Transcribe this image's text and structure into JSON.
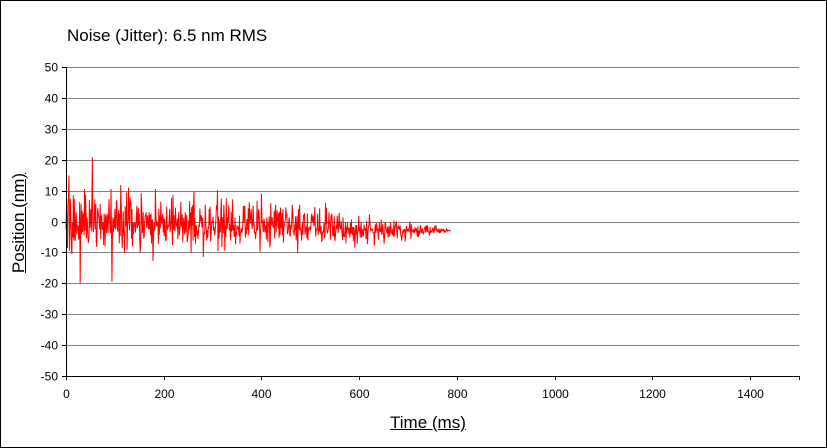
{
  "chart_data": {
    "type": "line",
    "title": "Noise (Jitter): 6.5 nm RMS",
    "xlabel": "Time (ms)",
    "ylabel": "Position (nm)",
    "xlim": [
      0,
      1500
    ],
    "ylim": [
      -50,
      50
    ],
    "x_ticks": [
      0,
      200,
      400,
      600,
      800,
      1000,
      1200,
      1400
    ],
    "y_ticks": [
      50,
      40,
      30,
      20,
      10,
      0,
      -10,
      -20,
      -30,
      -40,
      -50
    ],
    "grid": "horizontal",
    "legend": "none",
    "series_color": "#ff0000",
    "series": [
      {
        "x_start": 0,
        "x_step": 1,
        "values": [
          -2.5,
          4.9,
          -2.9,
          -8.6,
          5.9,
          7.7,
          14.9,
          -9.5,
          0.3,
          7.4,
          -0.6,
          -8.7,
          -10.5,
          -0.3,
          -5.1,
          8.5,
          -6.1,
          7.3,
          -4.5,
          -6.3,
          2.6,
          2.8,
          -4.2,
          -2.7,
          -1.3,
          -1.6,
          -5.9,
          -3.8,
          6.3,
          -20.0,
          -2.7,
          5.6,
          -4.1,
          3.4,
          -3.4,
          1.4,
          2.7,
          -4.5,
          10.5,
          -3.0,
          8.6,
          2.3,
          -5.4,
          1.2,
          -0.6,
          -6.0,
          -6.8,
          -5.3,
          7.0,
          -2.2,
          0.8,
          4.0,
          -3.2,
          7.4,
          20.8,
          -1.4,
          -3.5,
          -1.2,
          2.3,
          7.1,
          -2.5,
          5.6,
          -6.7,
          -8.2,
          -1.1,
          4.3,
          2.6,
          1.6,
          0.4,
          -2.6,
          5.7,
          -5.6,
          1.6,
          1.9,
          -2.4,
          -2.6,
          -0.3,
          -7.6,
          2.6,
          -0.8,
          -8.1,
          2.2,
          0.0,
          -3.8,
          2.6,
          1.1,
          -3.8,
          1.2,
          7.2,
          1.6,
          -1.9,
          -3.8,
          10.5,
          -1.4,
          -19.5,
          -5.0,
          1.4,
          -3.4,
          0.8,
          -2.1,
          4.1,
          -2.2,
          -2.5,
          6.3,
          6.9,
          -1.5,
          -3.3,
          1.9,
          3.7,
          -7.1,
          2.5,
          -4.7,
          11.8,
          5.2,
          -2.6,
          -8.6,
          -4.3,
          3.3,
          -2.8,
          -4.8,
          -10.1,
          4.9,
          -0.5,
          -1.6,
          9.4,
          -9.2,
          -1.1,
          0.5,
          11.0,
          2.0,
          -2.9,
          7.8,
          6.2,
          6.1,
          -5.6,
          4.0,
          -8.1,
          -0.3,
          -4.1,
          -1.5,
          -0.4,
          -0.4,
          -3.6,
          -2.0,
          1.7,
          5.1,
          -2.1,
          -1.0,
          4.5,
          -1.3,
          2.5,
          -6.9,
          -10.0,
          -5.6,
          9.2,
          4.8,
          -3.8,
          -2.6,
          3.0,
          -5.3,
          -5.1,
          -0.5,
          1.7,
          2.2,
          3.0,
          -2.0,
          0.4,
          2.0,
          -2.1,
          -2.3,
          3.0,
          -2.4,
          2.1,
          -4.5,
          2.5,
          -7.1,
          0.3,
          0.6,
          -12.8,
          -5.6,
          -0.4,
          -3.1,
          -2.3,
          10.5,
          2.2,
          -1.6,
          0.3,
          -1.4,
          -0.3,
          -7.3,
          4.1,
          -4.3,
          2.0,
          -2.3,
          6.4,
          1.2,
          -0.7,
          0.9,
          2.5,
          -3.5,
          1.2,
          -4.8,
          0.8,
          -2.0,
          -6.3,
          -5.9,
          4.8,
          -2.1,
          -2.5,
          -1.4,
          -1.6,
          -0.5,
          4.0,
          -3.5,
          -1.9,
          0.1,
          7.6,
          -2.7,
          -7.6,
          8.6,
          -2.7,
          2.0,
          -2.2,
          -3.1,
          4.5,
          -0.4,
          -1.3,
          -1.6,
          1.0,
          -5.7,
          -0.3,
          3.1,
          -4.5,
          -2.4,
          -1.3,
          6.4,
          -1.0,
          -1.8,
          2.3,
          -6.8,
          -1.5,
          1.2,
          -2.5,
          -4.2,
          3.0,
          -1.6,
          -3.6,
          2.2,
          -6.7,
          -5.5,
          -4.3,
          0.5,
          -2.8,
          6.5,
          -1.9,
          2.9,
          -10.1,
          4.6,
          -1.2,
          5.2,
          -6.2,
          5.5,
          9.8,
          -5.0,
          1.2,
          -7.2,
          -1.2,
          -1.6,
          -4.6,
          -3.0,
          -5.7,
          -3.2,
          -0.9,
          -1.8,
          4.2,
          0.0,
          1.7,
          1.8,
          -1.9,
          1.1,
          1.0,
          -11.5,
          -4.7,
          -3.6,
          -3.8,
          5.4,
          -0.4,
          -2.3,
          -6.2,
          -2.8,
          -5.3,
          -1.5,
          -2.4,
          4.0,
          -1.3,
          4.8,
          -6.5,
          -4.2,
          -1.6,
          0.3,
          -0.4,
          1.5,
          -3.0,
          -1.8,
          -4.5,
          -3.5,
          -1.4,
          1.7,
          5.2,
          3.8,
          10.1,
          -9.6,
          1.6,
          -5.5,
          -2.9,
          0.6,
          -3.5,
          3.8,
          7.4,
          -8.3,
          -1.3,
          1.4,
          -3.8,
          5.4,
          0.8,
          -9.5,
          -1.4,
          -5.1,
          7.5,
          -2.3,
          -2.1,
          1.4,
          -0.2,
          5.3,
          -2.8,
          -0.8,
          -3.3,
          -6.2,
          3.2,
          -3.3,
          -2.5,
          7.2,
          -2.8,
          -1.1,
          -4.3,
          -5.0,
          1.3,
          -7.4,
          -3.4,
          -4.4,
          -1.2,
          -2.0,
          -2.3,
          -1.8,
          -4.6,
          1.9,
          -7.1,
          -3.5,
          -3.4,
          -2.2,
          -3.4,
          -3.1,
          -0.1,
          5.1,
          -0.3,
          4.9,
          4.9,
          -5.2,
          -1.8,
          -4.1,
          0.6,
          0.5,
          -2.8,
          4.3,
          -4.5,
          6.3,
          1.8,
          -0.7,
          2.3,
          4.1,
          -0.4,
          -2.4,
          0.6,
          5.2,
          -1.2,
          -0.9,
          -3.9,
          -3.4,
          -5.7,
          -3.3,
          -2.7,
          6.7,
          -2.8,
          -1.1,
          3.9,
          3.0,
          -0.6,
          -9.7,
          -3.5,
          -1.5,
          9.0,
          -0.1,
          0.1,
          -1.9,
          -3.4,
          1.0,
          -0.1,
          -3.5,
          -2.4,
          -1.2,
          -5.8,
          1.3,
          -0.4,
          -6.7,
          -1.3,
          -0.2,
          1.7,
          -8.4,
          -6.9,
          5.9,
          -1.3,
          -0.5,
          1.4,
          -1.4,
          -1.6,
          -2.1,
          3.3,
          -5.5,
          3.2,
          5.4,
          -3.5,
          0.5,
          3.6,
          0.5,
          -2.3,
          2.7,
          -5.3,
          3.1,
          -4.4,
          4.5,
          -2.2,
          -1.7,
          2.8,
          -4.4,
          4.0,
          -6.8,
          -1.7,
          -1.1,
          -0.2,
          1.0,
          4.6,
          1.3,
          2.5,
          -4.1,
          -3.6,
          -2.6,
          0.4,
          1.3,
          -4.3,
          -4.8,
          -1.0,
          -2.6,
          0.4,
          5.4,
          3.1,
          -3.2,
          -3.4,
          -4.6,
          -0.9,
          -2.7,
          1.7,
          -6.1,
          -3.5,
          1.8,
          -10.2,
          -2.8,
          4.0,
          -2.6,
          5.4,
          -2.6,
          -2.3,
          -2.9,
          -6.2,
          -2.2,
          -0.3,
          -4.3,
          2.1,
          1.7,
          2.7,
          -4.2,
          -3.3,
          -1.8,
          -1.7,
          -5.4,
          2.6,
          -6.1,
          -2.2,
          -2.6,
          -2.2,
          -1.6,
          -2.9,
          -1.9,
          1.6,
          2.5,
          0.0,
          0.2,
          1.9,
          -1.2,
          -0.9,
          4.7,
          -1.4,
          -4.8,
          -2.6,
          -2.7,
          -2.3,
          2.5,
          -4.4,
          -2.1,
          -3.2,
          4.3,
          -3.2,
          -4.0,
          -1.4,
          -6.6,
          -5.9,
          -3.4,
          -3.6,
          -3.1,
          -0.4,
          -5.4,
          -4.3,
          6.0,
          -0.9,
          4.3,
          -2.8,
          -3.6,
          -3.3,
          -1.8,
          2.9,
          -0.4,
          -0.7,
          -5.9,
          2.0,
          0.2,
          2.6,
          -1.3,
          -4.6,
          -1.6,
          -4.9,
          1.7,
          -6.4,
          -5.3,
          -3.2,
          -1.1,
          -2.4,
          1.9,
          -1.0,
          -3.8,
          -0.5,
          2.8,
          -1.5,
          -2.6,
          -2.1,
          0.1,
          -2.0,
          -4.2,
          -6.0,
          1.3,
          -4.6,
          -4.3,
          -5.0,
          -2.6,
          -0.2,
          -7.1,
          -1.8,
          -3.8,
          -0.3,
          -2.5,
          -2.4,
          -4.2,
          -2.0,
          -5.3,
          -0.5,
          -3.9,
          0.7,
          -3.3,
          -4.4,
          -1.8,
          -6.3,
          -1.8,
          -3.0,
          -8.5,
          -4.1,
          -1.2,
          -4.2,
          -1.2,
          -7.2,
          -3.5,
          -3.2,
          1.8,
          -3.1,
          -1.7,
          -5.2,
          -2.6,
          -0.1,
          -5.3,
          -2.9,
          -2.5,
          -4.7,
          -4.6,
          -1.0,
          -2.7,
          -2.5,
          -2.3,
          -5.6,
          0.2,
          -3.7,
          -7.3,
          -3.1,
          -1.4,
          -1.3,
          2.3,
          -0.3,
          -2.5,
          -3.0,
          -2.5,
          -2.5,
          -2.4,
          -3.4,
          -3.6,
          -3.8,
          -7.8,
          -2.6,
          -0.9,
          -3.7,
          -0.4,
          -1.0,
          -3.1,
          -2.3,
          -5.9,
          -4.3,
          -0.3,
          -3.3,
          -2.0,
          -3.4,
          0.7,
          -4.3,
          -3.6,
          -0.9,
          -2.5,
          -4.3,
          -7.2,
          -4.5,
          -0.3,
          -0.7,
          -2.4,
          -3.4,
          -3.8,
          -1.8,
          -5.3,
          -2.9,
          -1.4,
          -4.8,
          -4.1,
          -0.4,
          -2.1,
          -3.6,
          -3.3,
          -4.3,
          -2.2,
          -4.8,
          0.3,
          -4.8,
          -2.3,
          -1.5,
          -0.5,
          -0.2,
          -3.2,
          -5.4,
          -1.5,
          -2.1,
          -1.3,
          -2.8,
          -2.0,
          -1.4,
          -4.5,
          -4.9,
          -6.2,
          -4.8,
          -3.5,
          -2.6,
          -3.3,
          -2.8,
          -2.4,
          -6.5,
          -4.5,
          -1.9,
          -1.5,
          -3.3,
          -2.9,
          -2.5,
          -3.0,
          -3.4,
          -0.6,
          -0.3,
          -3.6,
          -5.6,
          -0.9,
          -3.0,
          -3.3,
          -3.4,
          -2.5,
          -3.4,
          -3.8,
          -2.0,
          -2.3,
          -3.2,
          -2.2,
          -3.3,
          -4.9,
          -1.6,
          -5.0,
          -3.0,
          -4.0,
          -3.6,
          -1.2,
          -1.6,
          -3.9,
          -2.7,
          -2.5,
          -3.6,
          -4.0,
          -3.6,
          -2.5,
          -2.0,
          -1.6,
          -3.6,
          -1.9,
          -1.2,
          -3.4,
          -1.3,
          -2.9,
          -3.5,
          -3.5,
          -4.5,
          -1.7,
          -3.6,
          -3.5,
          -3.1,
          -3.3,
          -2.2,
          -2.3,
          -3.0,
          -3.8,
          -1.6,
          -3.0,
          -1.9,
          -1.2,
          -2.4,
          -3.2,
          -2.7,
          -3.2,
          -2.8,
          -3.3,
          -3.7,
          -2.3,
          -3.7,
          -2.6,
          -3.3,
          -2.3,
          -2.8,
          -2.7,
          -3.1,
          -2.6,
          -2.8,
          -3.5,
          -3.5,
          -3.2,
          -2.8,
          -2.4,
          -3.1,
          -2.8,
          -2.8,
          -3.0,
          -2.9,
          -3.0,
          -3.0,
          -3.0,
          -3.0
        ]
      }
    ]
  }
}
